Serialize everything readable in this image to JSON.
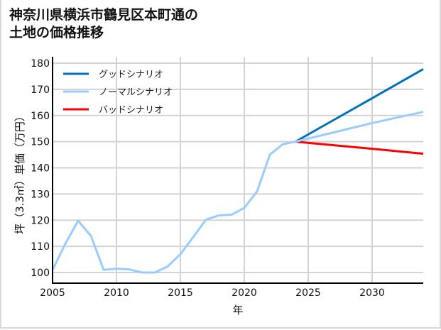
{
  "title": {
    "line1": "神奈川県横浜市鶴見区本町通の",
    "line2": "土地の価格推移"
  },
  "chart_data": {
    "type": "line",
    "title": "神奈川県横浜市鶴見区本町通の土地の価格推移",
    "xlabel": "年",
    "ylabel": "坪（3.3㎡）単価（万円）",
    "xlim": [
      2005,
      2034
    ],
    "ylim": [
      99,
      181
    ],
    "xticks": [
      2005,
      2010,
      2015,
      2020,
      2025,
      2030
    ],
    "yticks": [
      100,
      110,
      120,
      130,
      140,
      150,
      160,
      170,
      180
    ],
    "grid": true,
    "legend_position": "upper left",
    "series": [
      {
        "name": "グッドシナリオ",
        "color": "#0070c0",
        "x": [
          2024,
          2030,
          2034
        ],
        "values": [
          150,
          166.6,
          177.7
        ]
      },
      {
        "name": "ノーマルシナリオ",
        "color": "#99ccff",
        "x": [
          2005,
          2006,
          2007,
          2008,
          2009,
          2010,
          2011,
          2012,
          2013,
          2014,
          2015,
          2016,
          2017,
          2018,
          2019,
          2020,
          2021,
          2022,
          2023,
          2024,
          2030,
          2034
        ],
        "values": [
          101,
          111,
          119.8,
          114,
          101,
          101.5,
          101.2,
          100,
          100,
          102.3,
          107,
          113.5,
          120.2,
          121.8,
          122.1,
          124.7,
          131,
          145,
          149,
          150,
          157.1,
          161.4
        ]
      },
      {
        "name": "バッドシナリオ",
        "color": "#ff0000",
        "x": [
          2024,
          2030,
          2034
        ],
        "values": [
          150,
          147.3,
          145.4
        ]
      }
    ]
  }
}
